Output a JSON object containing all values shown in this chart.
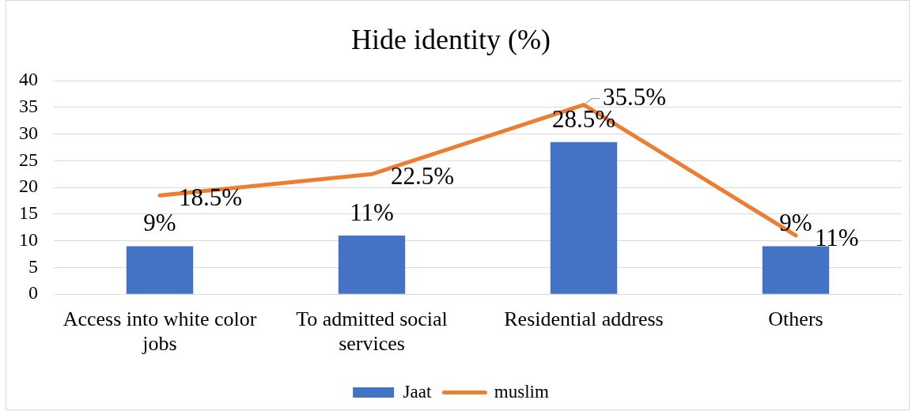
{
  "chart_data": {
    "type": "bar",
    "title": "Hide identity (%)",
    "categories": [
      "Access into white color jobs",
      "To admitted social services",
      "Residential address",
      "Others"
    ],
    "series": [
      {
        "name": "Jaat",
        "color": "#4472c4",
        "values": [
          9,
          11,
          28.5,
          9
        ],
        "value_labels": [
          "9%",
          "11%",
          "28.5%",
          "9%"
        ]
      },
      {
        "name": "muslim",
        "type": "line",
        "color": "#ed7d31",
        "values": [
          18.5,
          22.5,
          35.5,
          11
        ],
        "value_labels": [
          "18.5%",
          "22.5%",
          "35.5%",
          "11%"
        ]
      }
    ],
    "ylim": [
      0,
      40
    ],
    "yticks": [
      0,
      5,
      10,
      15,
      20,
      25,
      30,
      35,
      40
    ],
    "grid": "y",
    "legend": "bottom"
  }
}
